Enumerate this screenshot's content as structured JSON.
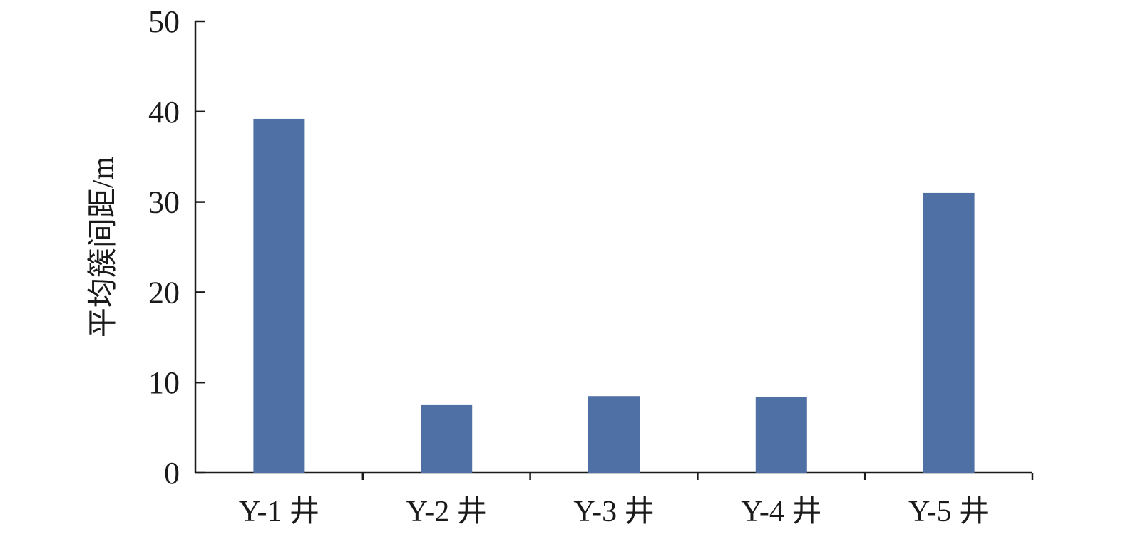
{
  "chart_data": {
    "type": "bar",
    "title": "",
    "xlabel": "",
    "ylabel": "平均簇间距/m",
    "categories": [
      "Y-1 井",
      "Y-2 井",
      "Y-3 井",
      "Y-4 井",
      "Y-5 井"
    ],
    "values": [
      39.2,
      7.5,
      8.5,
      8.4,
      31.0
    ],
    "ylim": [
      0,
      50
    ],
    "yticks": [
      0,
      10,
      20,
      30,
      40,
      50
    ],
    "grid": false,
    "legend": "none",
    "bar_color": "#4f70a5"
  }
}
